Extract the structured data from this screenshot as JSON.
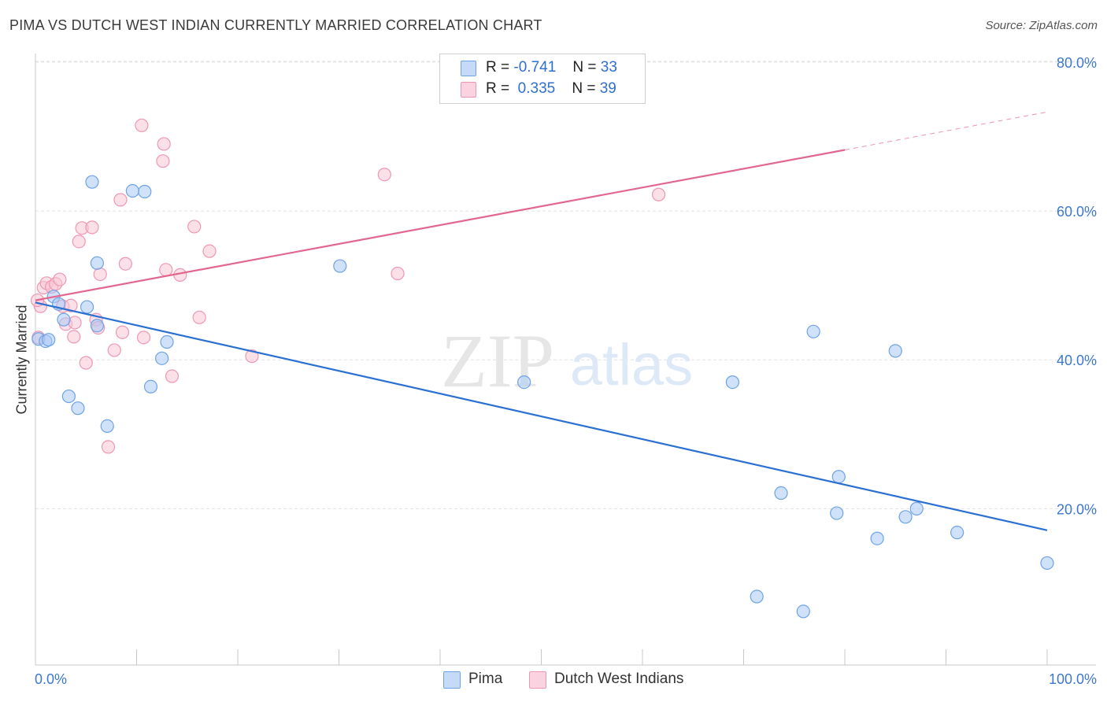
{
  "title": "PIMA VS DUTCH WEST INDIAN CURRENTLY MARRIED CORRELATION CHART",
  "source": "Source: ZipAtlas.com",
  "watermark": {
    "zip": "ZIP",
    "atlas": "atlas"
  },
  "legend": {
    "rows": [
      {
        "r_label": "R =",
        "r_value": "-0.741",
        "n_label": "N =",
        "n_value": "33",
        "color": "#a9c8f5"
      },
      {
        "r_label": "R =",
        "r_value": "0.335",
        "n_label": "N =",
        "n_value": "39",
        "color": "#f8b8cd"
      }
    ]
  },
  "colors": {
    "pima_fill": "#a9c8f5",
    "pima_stroke": "#6ea3e6",
    "pima_line": "#2a6fd2",
    "dwi_fill": "#f8c6d5",
    "dwi_stroke": "#ee97b4",
    "dwi_line": "#e2668f",
    "tick_label": "#3d78cc",
    "grid": "#e2e2e2"
  },
  "chart_data": {
    "type": "scatter",
    "title": "PIMA VS DUTCH WEST INDIAN CURRENTLY MARRIED CORRELATION CHART",
    "xlabel": "",
    "ylabel": "Currently Married",
    "xlim": [
      0,
      100
    ],
    "ylim": [
      -1,
      82
    ],
    "x_tick_labels": [
      "0.0%",
      "100.0%"
    ],
    "y_ticks": [
      20,
      40,
      60,
      80
    ],
    "y_tick_labels": [
      "20.0%",
      "40.0%",
      "60.0%",
      "80.0%"
    ],
    "series": [
      {
        "name": "Pima",
        "r": -0.741,
        "n": 33,
        "points": [
          [
            0.3,
            42.8
          ],
          [
            1.0,
            42.5
          ],
          [
            1.3,
            42.7
          ],
          [
            1.8,
            48.5
          ],
          [
            2.3,
            47.5
          ],
          [
            2.8,
            45.4
          ],
          [
            3.3,
            35.1
          ],
          [
            4.2,
            33.5
          ],
          [
            5.1,
            47.1
          ],
          [
            5.6,
            63.9
          ],
          [
            6.1,
            53.0
          ],
          [
            6.1,
            44.6
          ],
          [
            7.1,
            31.1
          ],
          [
            9.6,
            62.7
          ],
          [
            10.8,
            62.6
          ],
          [
            11.4,
            36.4
          ],
          [
            12.5,
            40.2
          ],
          [
            13.0,
            42.4
          ],
          [
            30.1,
            52.6
          ],
          [
            48.3,
            37.0
          ],
          [
            68.9,
            37.0
          ],
          [
            71.3,
            8.2
          ],
          [
            73.7,
            22.1
          ],
          [
            75.9,
            6.2
          ],
          [
            76.9,
            43.8
          ],
          [
            79.2,
            19.4
          ],
          [
            79.4,
            24.3
          ],
          [
            83.2,
            16.0
          ],
          [
            85.0,
            41.2
          ],
          [
            86.0,
            18.9
          ],
          [
            87.1,
            20.0
          ],
          [
            91.1,
            16.8
          ],
          [
            100.0,
            12.7
          ]
        ],
        "trend": {
          "x": [
            0,
            100
          ],
          "y": [
            47.7,
            17.1
          ]
        }
      },
      {
        "name": "Dutch West Indians",
        "r": 0.335,
        "n": 39,
        "points": [
          [
            0.3,
            43.0
          ],
          [
            0.5,
            47.2
          ],
          [
            0.8,
            49.7
          ],
          [
            1.1,
            50.3
          ],
          [
            1.6,
            49.8
          ],
          [
            2.0,
            50.2
          ],
          [
            2.4,
            50.8
          ],
          [
            2.7,
            47.2
          ],
          [
            3.0,
            44.8
          ],
          [
            3.5,
            47.3
          ],
          [
            3.8,
            43.1
          ],
          [
            3.9,
            45.0
          ],
          [
            4.3,
            55.9
          ],
          [
            4.6,
            57.7
          ],
          [
            5.0,
            39.6
          ],
          [
            5.6,
            57.8
          ],
          [
            6.0,
            45.4
          ],
          [
            6.2,
            44.3
          ],
          [
            6.4,
            51.5
          ],
          [
            7.2,
            28.3
          ],
          [
            7.8,
            41.3
          ],
          [
            8.4,
            61.5
          ],
          [
            8.6,
            43.7
          ],
          [
            8.9,
            52.9
          ],
          [
            10.5,
            71.5
          ],
          [
            10.7,
            43.0
          ],
          [
            12.6,
            66.7
          ],
          [
            12.7,
            69.0
          ],
          [
            12.9,
            52.1
          ],
          [
            13.5,
            37.8
          ],
          [
            14.3,
            51.4
          ],
          [
            15.7,
            57.9
          ],
          [
            16.2,
            45.7
          ],
          [
            17.2,
            54.6
          ],
          [
            21.4,
            40.5
          ],
          [
            34.5,
            64.9
          ],
          [
            35.8,
            51.6
          ],
          [
            61.6,
            62.2
          ],
          [
            0.2,
            48.0
          ]
        ],
        "trend": {
          "x": [
            0,
            80
          ],
          "y": [
            48.0,
            68.2
          ]
        },
        "trend_dashed": {
          "x": [
            80,
            100
          ],
          "y": [
            68.2,
            73.3
          ]
        }
      }
    ]
  },
  "bottom_legend": {
    "pima": "Pima",
    "dwi": "Dutch West Indians"
  }
}
